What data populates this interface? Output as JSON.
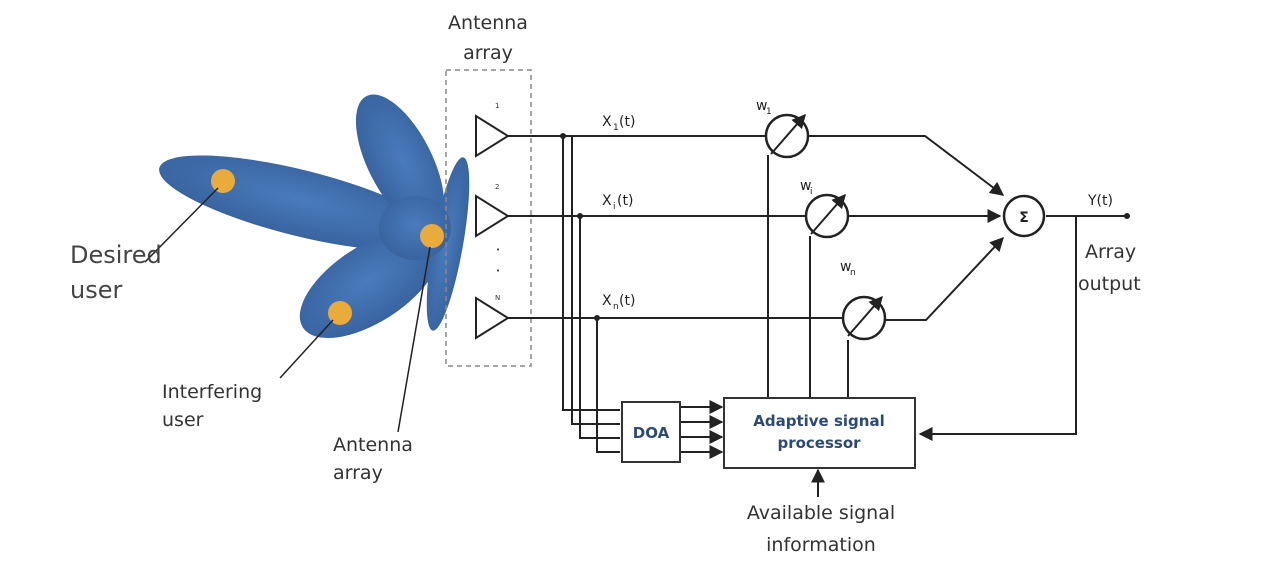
{
  "labels": {
    "antenna_array_top_line1": "Antenna",
    "antenna_array_top_line2": "array",
    "desired_user_line1": "Desired",
    "desired_user_line2": "user",
    "interfering_user_line1": "Interfering",
    "interfering_user_line2": "user",
    "antenna_array_bottom_line1": "Antenna",
    "antenna_array_bottom_line2": "array",
    "available_info_line1": "Available signal",
    "available_info_line2": "information",
    "array_output_line1": "Array",
    "array_output_line2": "output"
  },
  "elements": {
    "element_1_index": "1",
    "element_2_index": "2",
    "element_dot_1": "•",
    "element_dot_2": "•",
    "element_n_index": "N"
  },
  "signals": {
    "x1_main": "X",
    "x1_sub": "1",
    "x1_tail": "(t)",
    "xi_main": "X",
    "xi_sub": "i",
    "xi_tail": "(t)",
    "xn_main": "X",
    "xn_sub": "n",
    "xn_tail": "(t)",
    "output": "Y(t)"
  },
  "weights": {
    "w1_main": "w",
    "w1_sub": "1",
    "wi_main": "w",
    "wi_sub": "i",
    "wn_main": "w",
    "wn_sub": "n"
  },
  "blocks": {
    "summer": "Σ",
    "doa": "DOA",
    "asp_line1": "Adaptive signal",
    "asp_line2": "processor"
  },
  "colors": {
    "beam": "#3d6aa8",
    "user_dot": "#e9ab3c",
    "box_text": "#2c4a74"
  }
}
